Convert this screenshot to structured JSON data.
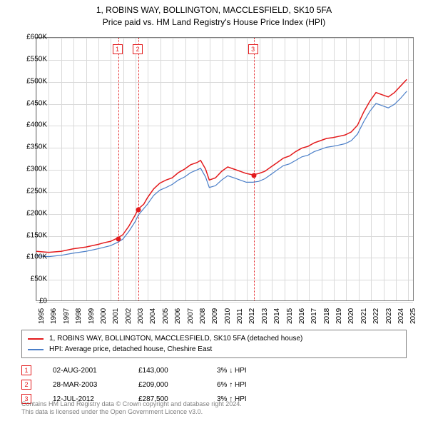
{
  "title_line1": "1, ROBINS WAY, BOLLINGTON, MACCLESFIELD, SK10 5FA",
  "title_line2": "Price paid vs. HM Land Registry's House Price Index (HPI)",
  "chart": {
    "type": "line",
    "x_years": [
      1995,
      1996,
      1997,
      1998,
      1999,
      2000,
      2001,
      2002,
      2003,
      2004,
      2005,
      2006,
      2007,
      2008,
      2009,
      2010,
      2011,
      2012,
      2013,
      2014,
      2015,
      2016,
      2017,
      2018,
      2019,
      2020,
      2021,
      2022,
      2023,
      2024,
      2025
    ],
    "x_range": [
      1995,
      2025.5
    ],
    "y_range": [
      0,
      600
    ],
    "y_ticks": [
      0,
      50,
      100,
      150,
      200,
      250,
      300,
      350,
      400,
      450,
      500,
      550,
      600
    ],
    "y_tick_labels": [
      "£0",
      "£50K",
      "£100K",
      "£150K",
      "£200K",
      "£250K",
      "£300K",
      "£350K",
      "£400K",
      "£450K",
      "£500K",
      "£550K",
      "£600K"
    ],
    "grid_color": "#d9d9d9",
    "axis_color": "#808080",
    "series": [
      {
        "name": "property",
        "color": "#e31a1c",
        "width": 1.5,
        "points": [
          [
            1995,
            112
          ],
          [
            1996,
            110
          ],
          [
            1997,
            112
          ],
          [
            1998,
            118
          ],
          [
            1999,
            122
          ],
          [
            2000,
            128
          ],
          [
            2000.5,
            132
          ],
          [
            2001,
            135
          ],
          [
            2001.6,
            143
          ],
          [
            2002,
            150
          ],
          [
            2002.5,
            170
          ],
          [
            2003,
            195
          ],
          [
            2003.25,
            209
          ],
          [
            2003.7,
            220
          ],
          [
            2004,
            235
          ],
          [
            2004.5,
            255
          ],
          [
            2005,
            268
          ],
          [
            2005.5,
            275
          ],
          [
            2006,
            280
          ],
          [
            2006.5,
            292
          ],
          [
            2007,
            300
          ],
          [
            2007.5,
            310
          ],
          [
            2008,
            315
          ],
          [
            2008.3,
            320
          ],
          [
            2008.7,
            300
          ],
          [
            2009,
            275
          ],
          [
            2009.5,
            280
          ],
          [
            2010,
            295
          ],
          [
            2010.5,
            305
          ],
          [
            2011,
            300
          ],
          [
            2011.5,
            295
          ],
          [
            2012,
            290
          ],
          [
            2012.53,
            287
          ],
          [
            2013,
            290
          ],
          [
            2013.5,
            295
          ],
          [
            2014,
            305
          ],
          [
            2014.5,
            315
          ],
          [
            2015,
            325
          ],
          [
            2015.5,
            330
          ],
          [
            2016,
            340
          ],
          [
            2016.5,
            348
          ],
          [
            2017,
            352
          ],
          [
            2017.5,
            360
          ],
          [
            2018,
            365
          ],
          [
            2018.5,
            370
          ],
          [
            2019,
            372
          ],
          [
            2019.5,
            375
          ],
          [
            2020,
            378
          ],
          [
            2020.5,
            385
          ],
          [
            2021,
            400
          ],
          [
            2021.5,
            430
          ],
          [
            2022,
            455
          ],
          [
            2022.5,
            475
          ],
          [
            2023,
            470
          ],
          [
            2023.5,
            465
          ],
          [
            2024,
            475
          ],
          [
            2024.5,
            490
          ],
          [
            2025,
            505
          ]
        ]
      },
      {
        "name": "hpi",
        "color": "#4a7ec8",
        "width": 1.2,
        "points": [
          [
            1995,
            102
          ],
          [
            1996,
            100
          ],
          [
            1997,
            103
          ],
          [
            1998,
            108
          ],
          [
            1999,
            112
          ],
          [
            2000,
            118
          ],
          [
            2001,
            125
          ],
          [
            2001.6,
            133
          ],
          [
            2002,
            140
          ],
          [
            2002.5,
            158
          ],
          [
            2003,
            180
          ],
          [
            2003.25,
            195
          ],
          [
            2004,
            220
          ],
          [
            2004.5,
            240
          ],
          [
            2005,
            252
          ],
          [
            2005.5,
            258
          ],
          [
            2006,
            265
          ],
          [
            2006.5,
            275
          ],
          [
            2007,
            282
          ],
          [
            2007.5,
            292
          ],
          [
            2008,
            298
          ],
          [
            2008.3,
            302
          ],
          [
            2008.7,
            282
          ],
          [
            2009,
            258
          ],
          [
            2009.5,
            262
          ],
          [
            2010,
            275
          ],
          [
            2010.5,
            285
          ],
          [
            2011,
            280
          ],
          [
            2011.5,
            275
          ],
          [
            2012,
            270
          ],
          [
            2012.53,
            270
          ],
          [
            2013,
            272
          ],
          [
            2013.5,
            278
          ],
          [
            2014,
            288
          ],
          [
            2014.5,
            298
          ],
          [
            2015,
            308
          ],
          [
            2015.5,
            312
          ],
          [
            2016,
            320
          ],
          [
            2016.5,
            328
          ],
          [
            2017,
            332
          ],
          [
            2017.5,
            340
          ],
          [
            2018,
            345
          ],
          [
            2018.5,
            350
          ],
          [
            2019,
            352
          ],
          [
            2019.5,
            355
          ],
          [
            2020,
            358
          ],
          [
            2020.5,
            365
          ],
          [
            2021,
            380
          ],
          [
            2021.5,
            408
          ],
          [
            2022,
            432
          ],
          [
            2022.5,
            450
          ],
          [
            2023,
            445
          ],
          [
            2023.5,
            440
          ],
          [
            2024,
            448
          ],
          [
            2024.5,
            462
          ],
          [
            2025,
            478
          ]
        ]
      }
    ],
    "sale_markers": [
      {
        "n": "1",
        "x": 2001.59,
        "y": 143,
        "color": "#e31a1c"
      },
      {
        "n": "2",
        "x": 2003.24,
        "y": 209,
        "color": "#e31a1c"
      },
      {
        "n": "3",
        "x": 2012.53,
        "y": 287,
        "color": "#e31a1c"
      }
    ]
  },
  "legend": {
    "items": [
      {
        "color": "#e31a1c",
        "label": "1, ROBINS WAY, BOLLINGTON, MACCLESFIELD, SK10 5FA (detached house)"
      },
      {
        "color": "#4a7ec8",
        "label": "HPI: Average price, detached house, Cheshire East"
      }
    ]
  },
  "sales": [
    {
      "n": "1",
      "date": "02-AUG-2001",
      "price": "£143,000",
      "delta": "3% ↓ HPI",
      "color": "#e31a1c"
    },
    {
      "n": "2",
      "date": "28-MAR-2003",
      "price": "£209,000",
      "delta": "6% ↑ HPI",
      "color": "#e31a1c"
    },
    {
      "n": "3",
      "date": "12-JUL-2012",
      "price": "£287,500",
      "delta": "3% ↑ HPI",
      "color": "#e31a1c"
    }
  ],
  "footer_line1": "Contains HM Land Registry data © Crown copyright and database right 2024.",
  "footer_line2": "This data is licensed under the Open Government Licence v3.0."
}
